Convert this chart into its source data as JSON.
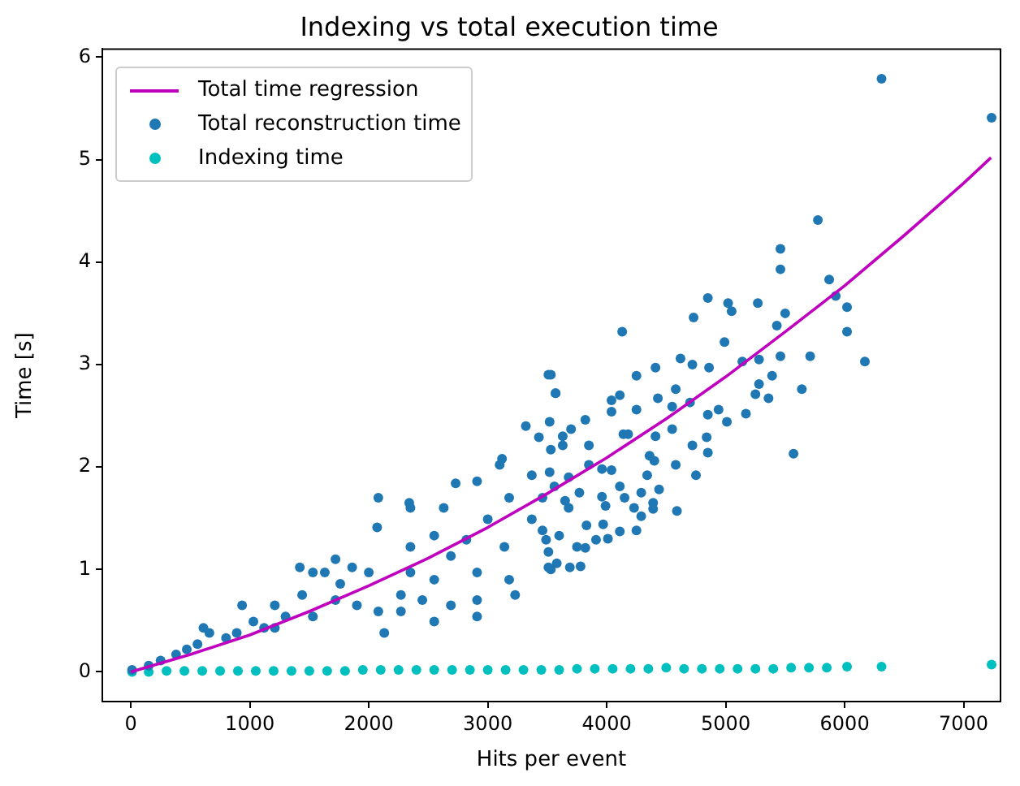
{
  "chart_data": {
    "type": "scatter",
    "title": "Indexing vs total execution time",
    "xlabel": "Hits per event",
    "ylabel": "Time [s]",
    "xlim": [
      -240,
      7310
    ],
    "ylim": [
      -0.29,
      6.08
    ],
    "xticks": [
      0,
      1000,
      2000,
      3000,
      4000,
      5000,
      6000,
      7000
    ],
    "yticks": [
      0,
      1,
      2,
      3,
      4,
      5,
      6
    ],
    "grid": false,
    "legend": "top left",
    "marker": "circle",
    "series": [
      {
        "name": "Total time regression",
        "type": "line",
        "color": "#bf00bf",
        "marker": "none",
        "x": [
          0,
          500,
          1000,
          1500,
          2000,
          2500,
          3000,
          3500,
          4000,
          4500,
          5000,
          5500,
          6000,
          6500,
          7000,
          7230
        ],
        "values": [
          0,
          0.17,
          0.36,
          0.59,
          0.84,
          1.11,
          1.41,
          1.74,
          2.09,
          2.47,
          2.88,
          3.32,
          3.77,
          4.26,
          4.77,
          5.02
        ]
      },
      {
        "name": "Total reconstruction time",
        "type": "scatter",
        "color": "#1f77b4",
        "x": [
          6310,
          7235,
          5775,
          5460,
          5460,
          5870,
          5925,
          6020,
          6020,
          6170,
          5570,
          4130,
          3530,
          3570,
          4730,
          4850,
          5020,
          5050,
          5270,
          5500,
          5430,
          5460,
          5710,
          4990,
          4620,
          4410,
          4250,
          4720,
          4860,
          5140,
          5280,
          5390,
          5280,
          5250,
          5360,
          5640,
          4580,
          4430,
          4700,
          4550,
          4940,
          4850,
          5010,
          5170,
          4040,
          4110,
          4250,
          4040,
          4550,
          4410,
          4180,
          4140,
          3850,
          3820,
          3700,
          3630,
          4720,
          4840,
          4850,
          4580,
          4400,
          4360,
          4040,
          3960,
          3850,
          3680,
          3520,
          3530,
          3520,
          4110,
          4150,
          4290,
          4340,
          4440,
          4390,
          4230,
          4290,
          4390,
          4590,
          4750,
          3960,
          3990,
          3970,
          3830,
          3910,
          4010,
          4110,
          4250,
          3750,
          3820,
          3580,
          3530,
          3780,
          3680,
          3770,
          3650,
          3560,
          3460,
          3460,
          3490,
          3510,
          3570,
          3320,
          3430,
          3630,
          3100,
          3120,
          2910,
          2730,
          2350,
          2340,
          2080,
          2070,
          2630,
          3180,
          3370,
          3510,
          3230,
          3510,
          3690,
          2910,
          2550,
          2270,
          2130,
          1860,
          1630,
          1720,
          1530,
          1420,
          1440,
          1210,
          935,
          1030,
          660,
          560,
          380,
          150,
          10,
          250,
          800,
          1120,
          1300,
          1720,
          1900,
          2450,
          2690,
          2820,
          3000,
          2350,
          2000,
          2350,
          2690,
          2910,
          2550,
          1760,
          890,
          610,
          470,
          1210,
          1530,
          2080,
          3370,
          3600,
          3140,
          3180,
          2270,
          2550,
          2910
        ],
        "values": [
          5.79,
          5.41,
          4.41,
          4.13,
          3.93,
          3.83,
          3.67,
          3.56,
          3.32,
          3.03,
          2.13,
          3.32,
          2.9,
          2.72,
          3.46,
          3.65,
          3.6,
          3.52,
          3.6,
          3.5,
          3.38,
          3.08,
          3.08,
          3.22,
          3.06,
          2.97,
          2.89,
          3.0,
          2.97,
          3.03,
          3.05,
          2.89,
          2.81,
          2.71,
          2.67,
          2.76,
          2.76,
          2.67,
          2.63,
          2.59,
          2.56,
          2.51,
          2.44,
          2.52,
          2.65,
          2.7,
          2.56,
          2.54,
          2.37,
          2.3,
          2.32,
          2.32,
          2.21,
          2.46,
          2.37,
          2.3,
          2.21,
          2.29,
          2.14,
          2.02,
          2.06,
          2.11,
          1.97,
          1.98,
          2.02,
          1.9,
          1.95,
          2.17,
          2.44,
          1.81,
          1.7,
          1.75,
          1.92,
          1.78,
          1.65,
          1.6,
          1.52,
          1.59,
          1.57,
          1.92,
          1.71,
          1.62,
          1.44,
          1.43,
          1.29,
          1.3,
          1.37,
          1.38,
          1.22,
          1.21,
          1.06,
          1.0,
          1.03,
          1.6,
          1.75,
          1.67,
          1.81,
          1.7,
          1.38,
          1.29,
          2.9,
          2.72,
          2.4,
          2.29,
          2.21,
          2.02,
          2.08,
          1.86,
          1.84,
          1.6,
          1.65,
          1.7,
          1.41,
          1.6,
          1.7,
          1.49,
          1.17,
          0.75,
          1.02,
          1.02,
          0.97,
          0.9,
          0.75,
          0.38,
          1.02,
          0.97,
          1.1,
          0.97,
          1.02,
          0.75,
          0.65,
          0.65,
          0.49,
          0.38,
          0.27,
          0.17,
          0.06,
          0.02,
          0.11,
          0.33,
          0.43,
          0.54,
          0.7,
          0.65,
          0.7,
          1.13,
          1.29,
          1.49,
          1.22,
          0.97,
          0.97,
          0.65,
          0.7,
          1.33,
          0.86,
          0.38,
          0.43,
          0.22,
          0.43,
          0.54,
          0.59,
          1.92,
          1.33,
          1.22,
          0.9,
          0.59,
          0.49,
          0.54
        ]
      },
      {
        "name": "Indexing time",
        "type": "scatter",
        "color": "#00bfbf",
        "x": [
          10,
          150,
          300,
          450,
          600,
          750,
          900,
          1050,
          1200,
          1350,
          1500,
          1650,
          1800,
          1950,
          2100,
          2250,
          2400,
          2550,
          2700,
          2850,
          3000,
          3150,
          3300,
          3450,
          3600,
          3750,
          3900,
          4050,
          4200,
          4350,
          4500,
          4650,
          4800,
          4950,
          5100,
          5250,
          5400,
          5550,
          5700,
          5850,
          6020,
          6310,
          7235
        ],
        "values": [
          0.0,
          0.0,
          0.01,
          0.01,
          0.01,
          0.01,
          0.01,
          0.01,
          0.01,
          0.01,
          0.01,
          0.01,
          0.01,
          0.02,
          0.02,
          0.02,
          0.02,
          0.02,
          0.02,
          0.02,
          0.02,
          0.02,
          0.02,
          0.02,
          0.02,
          0.03,
          0.03,
          0.03,
          0.03,
          0.03,
          0.04,
          0.03,
          0.03,
          0.03,
          0.03,
          0.03,
          0.03,
          0.04,
          0.04,
          0.04,
          0.05,
          0.05,
          0.07
        ]
      }
    ]
  }
}
